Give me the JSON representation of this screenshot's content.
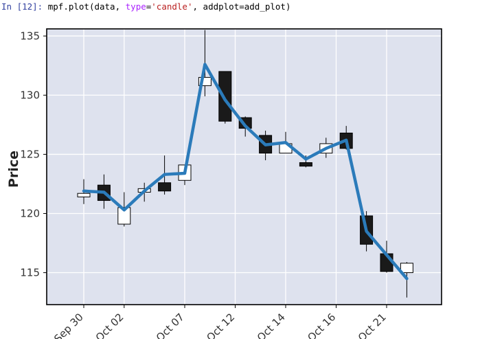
{
  "cell": {
    "prompt": "In [12]:",
    "code_tokens": [
      {
        "t": " mpf.plot(data, ",
        "c": "plain"
      },
      {
        "t": "type",
        "c": "kw"
      },
      {
        "t": "=",
        "c": "plain"
      },
      {
        "t": "'candle'",
        "c": "str"
      },
      {
        "t": ", addplot=add_plot)",
        "c": "plain"
      }
    ]
  },
  "colors": {
    "plot_bg": "#dee2ee",
    "grid": "#ffffff",
    "up_fill": "#ffffff",
    "down_fill": "#1a1a1a",
    "line": "#2b7bba"
  },
  "chart_data": {
    "type": "candlestick",
    "title": "",
    "ylabel": "Price",
    "ylim": [
      112.3,
      135.6
    ],
    "yticks": [
      115,
      120,
      125,
      130,
      135
    ],
    "x_ticks": [
      {
        "i": 0,
        "label": "Sep 30"
      },
      {
        "i": 2,
        "label": "Oct 02"
      },
      {
        "i": 5,
        "label": "Oct 07"
      },
      {
        "i": 7.5,
        "label": "Oct 12"
      },
      {
        "i": 10,
        "label": "Oct 14"
      },
      {
        "i": 12.5,
        "label": "Oct 16"
      },
      {
        "i": 15,
        "label": "Oct 21"
      }
    ],
    "candles": [
      {
        "o": 121.4,
        "h": 122.9,
        "l": 120.8,
        "c": 121.7
      },
      {
        "o": 122.4,
        "h": 123.3,
        "l": 120.4,
        "c": 121.1
      },
      {
        "o": 119.1,
        "h": 121.8,
        "l": 118.9,
        "c": 120.5
      },
      {
        "o": 121.8,
        "h": 122.6,
        "l": 121.0,
        "c": 122.1
      },
      {
        "o": 122.6,
        "h": 124.9,
        "l": 121.6,
        "c": 121.9
      },
      {
        "o": 122.8,
        "h": 124.1,
        "l": 122.4,
        "c": 124.1
      },
      {
        "o": 130.8,
        "h": 135.5,
        "l": 129.9,
        "c": 131.5
      },
      {
        "o": 132.0,
        "h": 132.0,
        "l": 127.6,
        "c": 127.8
      },
      {
        "o": 128.1,
        "h": 128.2,
        "l": 126.5,
        "c": 127.2
      },
      {
        "o": 126.6,
        "h": 127.0,
        "l": 124.5,
        "c": 125.1
      },
      {
        "o": 125.1,
        "h": 126.9,
        "l": 125.1,
        "c": 125.9
      },
      {
        "o": 124.3,
        "h": 124.9,
        "l": 123.9,
        "c": 124.0
      },
      {
        "o": 125.1,
        "h": 126.4,
        "l": 124.7,
        "c": 125.9
      },
      {
        "o": 126.8,
        "h": 127.4,
        "l": 125.4,
        "c": 125.5
      },
      {
        "o": 119.8,
        "h": 120.2,
        "l": 116.8,
        "c": 117.4
      },
      {
        "o": 116.6,
        "h": 117.7,
        "l": 115.0,
        "c": 115.1
      },
      {
        "o": 115.0,
        "h": 115.9,
        "l": 112.9,
        "c": 115.8
      }
    ],
    "series": [
      {
        "values": [
          121.9,
          121.8,
          120.3,
          121.9,
          123.3,
          123.4,
          132.6,
          129.6,
          127.4,
          125.8,
          126.0,
          124.6,
          125.5,
          126.2,
          118.5,
          116.5,
          114.5
        ]
      }
    ]
  }
}
